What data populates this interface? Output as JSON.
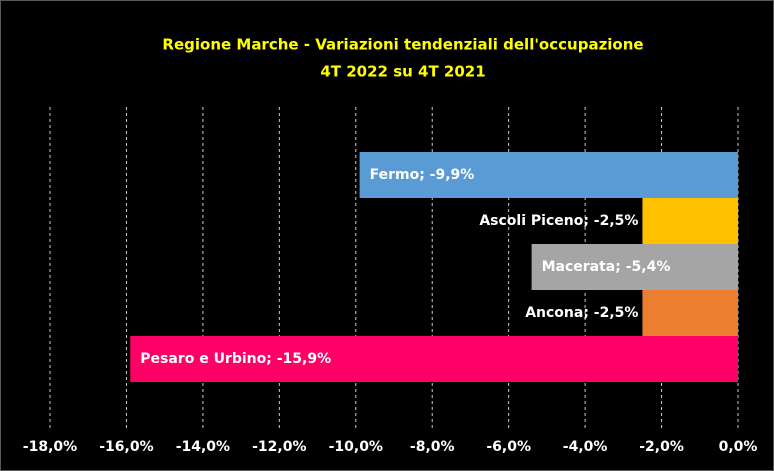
{
  "chart_data": {
    "type": "bar",
    "orientation": "horizontal",
    "title": "Regione Marche - Variazioni tendenziali dell'occupazione",
    "subtitle": "4T 2022 su 4T 2021",
    "categories": [
      "Fermo",
      "Ascoli Piceno",
      "Macerata",
      "Ancona",
      "Pesaro e Urbino"
    ],
    "values": [
      -9.9,
      -2.5,
      -5.4,
      -2.5,
      -15.9
    ],
    "value_labels": [
      "Fermo; -9,9%",
      "Ascoli Piceno; -2,5%",
      "Macerata; -5,4%",
      "Ancona; -2,5%",
      "Pesaro e Urbino; -15,9%"
    ],
    "colors": [
      "#5b9bd5",
      "#ffc000",
      "#a5a5a5",
      "#ed7d31",
      "#ff0066"
    ],
    "xlim": [
      -18,
      0
    ],
    "xticks": [
      {
        "value": -18,
        "label": "-18,0%"
      },
      {
        "value": -16,
        "label": "-16,0%"
      },
      {
        "value": -14,
        "label": "-14,0%"
      },
      {
        "value": -12,
        "label": "-12,0%"
      },
      {
        "value": -10,
        "label": "-10,0%"
      },
      {
        "value": -8,
        "label": "-8,0%"
      },
      {
        "value": -6,
        "label": "-6,0%"
      },
      {
        "value": -4,
        "label": "-4,0%"
      },
      {
        "value": -2,
        "label": "-2,0%"
      },
      {
        "value": 0,
        "label": "0,0%"
      }
    ],
    "grid": true
  }
}
